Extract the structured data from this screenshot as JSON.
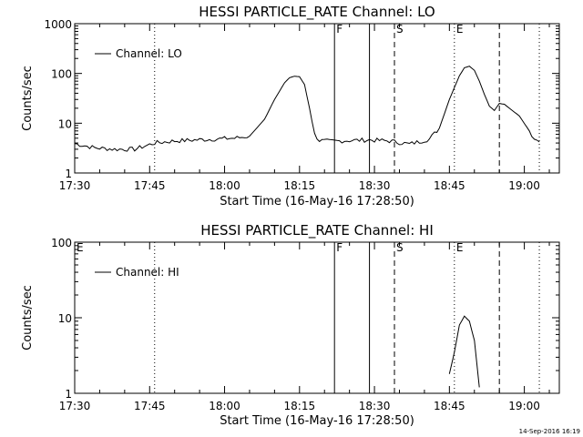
{
  "footer": {
    "timestamp": "14-Sep-2016 16:19"
  },
  "chart_data": [
    {
      "type": "line",
      "title": "HESSI PARTICLE_RATE Channel: LO",
      "xlabel": "Start Time (16-May-16 17:28:50)",
      "ylabel": "Counts/sec",
      "yscale": "log",
      "ylim": [
        1,
        1000
      ],
      "ytick_labels": [
        "1",
        "10",
        "100",
        "1000"
      ],
      "xlim_minutes_after_1730": [
        0,
        97
      ],
      "xtick_labels": [
        "17:30",
        "17:45",
        "18:00",
        "18:15",
        "18:30",
        "18:45",
        "19:00"
      ],
      "legend": {
        "label": "Channel: LO",
        "position": "top-left"
      },
      "event_markers": [
        {
          "label": "",
          "time": "17:46",
          "style": "dotted"
        },
        {
          "label": "F",
          "time": "18:22",
          "style": "solid"
        },
        {
          "label": "",
          "time": "18:29",
          "style": "solid"
        },
        {
          "label": "S",
          "time": "18:34",
          "style": "dashed"
        },
        {
          "label": "E",
          "time": "18:46",
          "style": "dotted"
        },
        {
          "label": "",
          "time": "18:55",
          "style": "dashed"
        },
        {
          "label": "",
          "time": "19:03",
          "style": "dotted"
        }
      ],
      "series": [
        {
          "name": "Channel: LO",
          "x": [
            "17:30",
            "17:34",
            "17:38",
            "17:42",
            "17:46",
            "17:50",
            "17:54",
            "17:58",
            "18:02",
            "18:05",
            "18:08",
            "18:10",
            "18:12",
            "18:13",
            "18:14",
            "18:15",
            "18:16",
            "18:17",
            "18:18",
            "18:19",
            "18:21",
            "18:25",
            "18:29",
            "18:33",
            "18:37",
            "18:41",
            "18:43",
            "18:45",
            "18:47",
            "18:48",
            "18:49",
            "18:50",
            "18:51",
            "18:52",
            "18:53",
            "18:54",
            "18:55",
            "18:56",
            "18:57",
            "18:59",
            "19:01",
            "19:02",
            "19:03"
          ],
          "y": [
            3.9,
            3.2,
            3.0,
            3.0,
            4.0,
            4.4,
            4.6,
            4.8,
            5.0,
            5.5,
            12,
            30,
            65,
            82,
            88,
            86,
            60,
            20,
            6.0,
            4.5,
            4.3,
            4.5,
            4.6,
            4.4,
            3.8,
            4.8,
            8,
            30,
            90,
            130,
            140,
            115,
            70,
            38,
            22,
            18,
            25,
            24,
            20,
            14,
            7,
            5,
            4.2
          ]
        }
      ]
    },
    {
      "type": "line",
      "title": "HESSI PARTICLE_RATE Channel: HI",
      "xlabel": "Start Time (16-May-16 17:28:50)",
      "ylabel": "Counts/sec",
      "yscale": "log",
      "ylim": [
        1,
        100
      ],
      "ytick_labels": [
        "1",
        "10",
        "100"
      ],
      "xlim_minutes_after_1730": [
        0,
        97
      ],
      "xtick_labels": [
        "17:30",
        "17:45",
        "18:00",
        "18:15",
        "18:30",
        "18:45",
        "19:00"
      ],
      "legend": {
        "label": "Channel: HI",
        "position": "top-left"
      },
      "event_markers": [
        {
          "label": "E",
          "time": "17:30",
          "style": "none"
        },
        {
          "label": "",
          "time": "17:46",
          "style": "dotted"
        },
        {
          "label": "F",
          "time": "18:22",
          "style": "solid"
        },
        {
          "label": "",
          "time": "18:29",
          "style": "solid"
        },
        {
          "label": "S",
          "time": "18:34",
          "style": "dashed"
        },
        {
          "label": "E",
          "time": "18:46",
          "style": "dotted"
        },
        {
          "label": "",
          "time": "18:55",
          "style": "dashed"
        },
        {
          "label": "",
          "time": "19:03",
          "style": "dotted"
        }
      ],
      "series": [
        {
          "name": "Channel: HI",
          "x": [
            "18:45",
            "18:46",
            "18:47",
            "18:48",
            "18:49",
            "18:50",
            "18:51"
          ],
          "y": [
            1.8,
            3.5,
            8,
            10.5,
            9,
            5,
            1.2
          ]
        }
      ]
    }
  ]
}
